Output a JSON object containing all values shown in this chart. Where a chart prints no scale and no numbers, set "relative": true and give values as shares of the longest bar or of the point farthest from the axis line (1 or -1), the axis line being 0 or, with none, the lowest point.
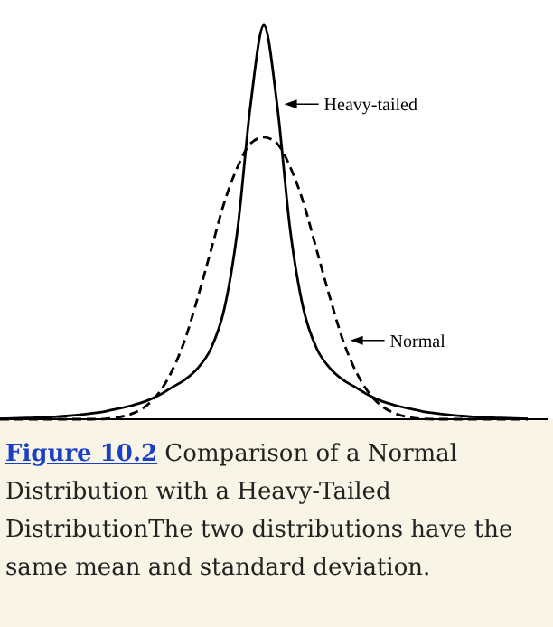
{
  "chart_data": {
    "type": "line",
    "relative": true,
    "title": "Figure 10.2",
    "subtitle": "Comparison of a Normal Distribution with a Heavy-Tailed DistributionThe two distributions have the same mean and standard deviation.",
    "categories": [
      null,
      null,
      null,
      null,
      null,
      null,
      null,
      null,
      null,
      null,
      null,
      null,
      null,
      null,
      null,
      null,
      null,
      null,
      null,
      null,
      null,
      null,
      null,
      null,
      null,
      null,
      null,
      null,
      null,
      null,
      null,
      null,
      null,
      null,
      null,
      null,
      null,
      null,
      null,
      null,
      null
    ],
    "series": [
      {
        "name": "Heavy-tailed",
        "color": "#000000",
        "line_style": "solid",
        "values": [
          0.001,
          0.002,
          0.003,
          0.004,
          0.006,
          0.008,
          0.011,
          0.015,
          0.02,
          0.027,
          0.035,
          0.045,
          0.06,
          0.08,
          0.1,
          0.13,
          0.18,
          0.28,
          0.48,
          0.8,
          1.0,
          0.8,
          0.48,
          0.28,
          0.18,
          0.13,
          0.1,
          0.08,
          0.06,
          0.045,
          0.035,
          0.027,
          0.02,
          0.015,
          0.011,
          0.008,
          0.006,
          0.004,
          0.003,
          0.002,
          0.001
        ]
      },
      {
        "name": "Normal",
        "color": "#000000",
        "line_style": "dashed",
        "values": [
          0,
          0,
          0,
          0,
          0,
          0,
          0,
          0,
          0.001,
          0.005,
          0.014,
          0.032,
          0.065,
          0.12,
          0.2,
          0.31,
          0.43,
          0.55,
          0.64,
          0.7,
          0.716,
          0.7,
          0.64,
          0.55,
          0.43,
          0.31,
          0.2,
          0.12,
          0.065,
          0.032,
          0.014,
          0.005,
          0.001,
          0,
          0,
          0,
          0,
          0,
          0,
          0,
          0
        ]
      }
    ],
    "legend": "right"
  }
}
